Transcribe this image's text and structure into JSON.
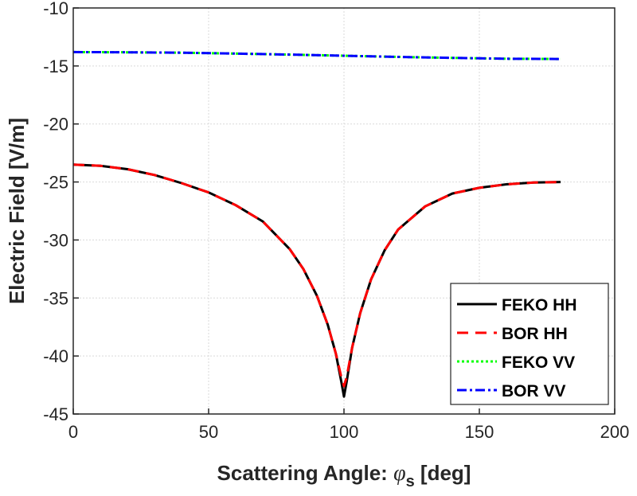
{
  "chart_data": {
    "type": "line",
    "title": "",
    "xlabel_main": "Scattering Angle: ",
    "xlabel_symbol": "φ",
    "xlabel_sub": "s",
    "xlabel_unit": " [deg]",
    "ylabel": "Electric Field [V/m]",
    "xlim": [
      0,
      200
    ],
    "ylim": [
      -45,
      -10
    ],
    "xticks": [
      0,
      50,
      100,
      150,
      200
    ],
    "yticks": [
      -10,
      -15,
      -20,
      -25,
      -30,
      -35,
      -40,
      -45
    ],
    "grid": true,
    "legend_position": "bottom-right",
    "series": [
      {
        "name": "FEKO HH",
        "color": "#000000",
        "style": "solid",
        "x": [
          0,
          10,
          20,
          30,
          40,
          50,
          60,
          70,
          80,
          85,
          90,
          94,
          97,
          99,
          100,
          101,
          103,
          106,
          110,
          115,
          120,
          130,
          140,
          150,
          160,
          170,
          180
        ],
        "y": [
          -23.5,
          -23.6,
          -23.9,
          -24.4,
          -25.1,
          -25.9,
          -27.0,
          -28.4,
          -30.8,
          -32.5,
          -34.8,
          -37.3,
          -39.8,
          -42.2,
          -43.5,
          -42.2,
          -39.3,
          -36.3,
          -33.4,
          -30.9,
          -29.1,
          -27.1,
          -26.0,
          -25.5,
          -25.2,
          -25.05,
          -25.0
        ]
      },
      {
        "name": "BOR HH",
        "color": "#ff0000",
        "style": "dashed",
        "x": [
          0,
          10,
          20,
          30,
          40,
          50,
          60,
          70,
          80,
          85,
          90,
          94,
          97,
          99,
          100,
          101,
          103,
          106,
          110,
          115,
          120,
          130,
          140,
          150,
          160,
          170,
          180
        ],
        "y": [
          -23.5,
          -23.6,
          -23.9,
          -24.4,
          -25.1,
          -25.9,
          -27.0,
          -28.4,
          -30.8,
          -32.5,
          -34.8,
          -37.3,
          -39.8,
          -41.8,
          -42.6,
          -41.8,
          -39.3,
          -36.3,
          -33.4,
          -30.9,
          -29.1,
          -27.1,
          -26.0,
          -25.5,
          -25.2,
          -25.05,
          -25.0
        ]
      },
      {
        "name": "FEKO VV",
        "color": "#00ff00",
        "style": "dotted",
        "x": [
          0,
          20,
          40,
          60,
          80,
          100,
          120,
          140,
          160,
          180
        ],
        "y": [
          -13.8,
          -13.82,
          -13.86,
          -13.93,
          -14.02,
          -14.12,
          -14.22,
          -14.3,
          -14.38,
          -14.4
        ]
      },
      {
        "name": "BOR VV",
        "color": "#0000ff",
        "style": "dashdot",
        "x": [
          0,
          20,
          40,
          60,
          80,
          100,
          120,
          140,
          160,
          180
        ],
        "y": [
          -13.8,
          -13.82,
          -13.86,
          -13.93,
          -14.02,
          -14.12,
          -14.22,
          -14.3,
          -14.38,
          -14.4
        ]
      }
    ]
  }
}
